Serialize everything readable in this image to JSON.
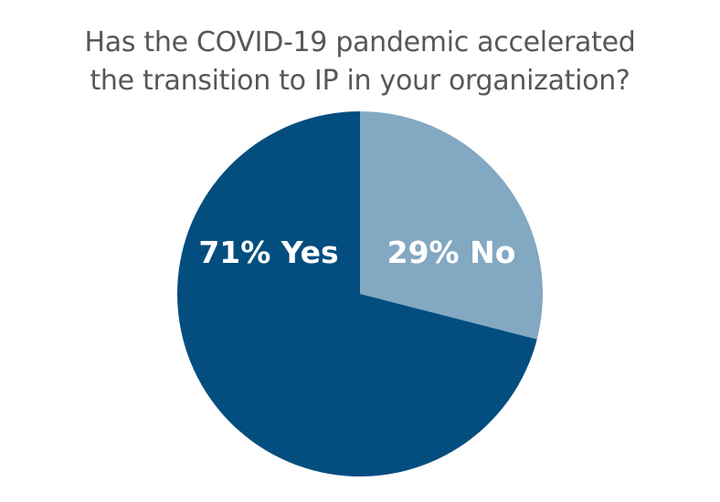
{
  "chart_data": {
    "type": "pie",
    "title_lines": [
      "Has the COVID-19 pandemic accelerated",
      "the transition to IP in your organization?"
    ],
    "slices": [
      {
        "label": "29% No",
        "category": "No",
        "value": 29,
        "color": "#82a8c2"
      },
      {
        "label": "71% Yes",
        "category": "Yes",
        "value": 71,
        "color": "#034e7f"
      }
    ],
    "start": "12 o'clock",
    "direction": "clockwise"
  }
}
